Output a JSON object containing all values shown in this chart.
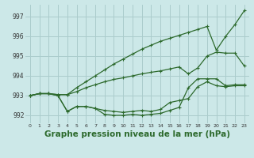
{
  "bg_color": "#cce8e8",
  "grid_color": "#aacccc",
  "line_color": "#2d6a2d",
  "marker": "+",
  "markersize": 3.5,
  "linewidth": 0.9,
  "xlabel": "Graphe pression niveau de la mer (hPa)",
  "xlabel_fontsize": 7.5,
  "ylabel_ticks": [
    992,
    993,
    994,
    995,
    996,
    997
  ],
  "xlim": [
    -0.5,
    23.5
  ],
  "ylim": [
    991.6,
    997.6
  ],
  "series": [
    [
      993.0,
      993.1,
      993.1,
      993.05,
      993.05,
      993.4,
      993.7,
      994.0,
      994.3,
      994.6,
      994.85,
      995.1,
      995.35,
      995.55,
      995.75,
      995.9,
      996.05,
      996.2,
      996.35,
      996.5,
      995.3,
      996.0,
      996.6,
      997.3
    ],
    [
      993.0,
      993.1,
      993.1,
      993.05,
      993.05,
      993.2,
      993.4,
      993.55,
      993.7,
      993.82,
      993.9,
      994.0,
      994.1,
      994.18,
      994.25,
      994.35,
      994.45,
      994.1,
      994.4,
      995.0,
      995.2,
      995.15,
      995.15,
      994.5
    ],
    [
      993.0,
      993.1,
      993.1,
      993.0,
      992.2,
      992.45,
      992.45,
      992.35,
      992.25,
      992.2,
      992.15,
      992.2,
      992.25,
      992.2,
      992.3,
      992.65,
      992.75,
      992.85,
      993.45,
      993.7,
      993.5,
      993.45,
      993.5,
      993.5
    ],
    [
      993.0,
      993.1,
      993.1,
      993.0,
      992.2,
      992.45,
      992.45,
      992.35,
      992.05,
      992.0,
      992.0,
      992.05,
      992.0,
      992.05,
      992.1,
      992.25,
      992.4,
      993.4,
      993.85,
      993.85,
      993.85,
      993.5,
      993.55,
      993.55
    ]
  ]
}
